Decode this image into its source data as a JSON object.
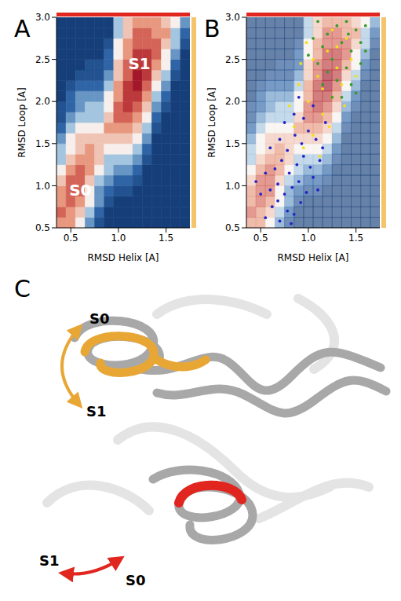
{
  "chart_data": [
    {
      "label": "A",
      "type": "heatmap",
      "x_label": "RMSD Helix [A]",
      "y_label": "RMSD Loop [A]",
      "xlim": [
        0.35,
        1.75
      ],
      "xticks": [
        0.5,
        {
          "value": 1,
          "label": "1.0"
        },
        1.5
      ],
      "ylim": [
        0.5,
        3.0
      ],
      "yticks": [
        0.5,
        {
          "value": 1,
          "label": "1.0"
        },
        1.5,
        {
          "value": 2,
          "label": "2.0"
        },
        2.5,
        {
          "value": 3,
          "label": "3.0"
        }
      ],
      "annotations": [
        {
          "text": "S0",
          "x": 0.6,
          "y": 0.95
        },
        {
          "text": "S1",
          "x": 1.22,
          "y": 2.45
        }
      ],
      "cells": {
        "x_edges": [
          0.35,
          0.45,
          0.55,
          0.65,
          0.75,
          0.85,
          0.95,
          1.05,
          1.15,
          1.25,
          1.35,
          1.45,
          1.55,
          1.65,
          1.75
        ],
        "y_edges": [
          0.5,
          0.625,
          0.75,
          0.875,
          1.0,
          1.125,
          1.25,
          1.375,
          1.5,
          1.625,
          1.75,
          1.875,
          2.0,
          2.125,
          2.25,
          2.375,
          2.5,
          2.625,
          2.75,
          2.875,
          3.0
        ],
        "zlim": [
          0,
          10
        ],
        "z": [
          [
            7,
            7,
            5,
            3,
            1,
            0,
            0,
            0,
            0,
            0,
            0,
            0,
            0,
            0
          ],
          [
            8,
            7,
            6,
            4,
            2,
            0,
            0,
            0,
            0,
            0,
            0,
            0,
            0,
            0
          ],
          [
            7,
            8,
            7,
            5,
            3,
            1,
            0,
            0,
            0,
            0,
            0,
            0,
            0,
            0
          ],
          [
            7,
            8,
            8,
            5,
            3,
            2,
            1,
            1,
            0,
            0,
            0,
            0,
            0,
            0
          ],
          [
            6,
            8,
            8,
            6,
            4,
            3,
            2,
            2,
            1,
            0,
            0,
            0,
            0,
            0
          ],
          [
            5,
            7,
            8,
            7,
            5,
            4,
            3,
            3,
            2,
            0,
            0,
            0,
            0,
            0
          ],
          [
            4,
            6,
            7,
            7,
            6,
            4,
            4,
            4,
            3,
            1,
            0,
            0,
            0,
            0
          ],
          [
            4,
            5,
            6,
            7,
            6,
            5,
            5,
            5,
            4,
            2,
            0,
            0,
            0,
            0
          ],
          [
            3,
            5,
            6,
            6,
            6,
            6,
            6,
            6,
            5,
            3,
            0,
            0,
            0,
            0
          ],
          [
            2,
            4,
            5,
            5,
            5,
            7,
            7,
            7,
            6,
            4,
            1,
            0,
            0,
            0
          ],
          [
            1,
            3,
            4,
            4,
            4,
            6,
            8,
            8,
            7,
            5,
            2,
            0,
            0,
            0
          ],
          [
            1,
            2,
            3,
            4,
            4,
            5,
            8,
            9,
            8,
            6,
            3,
            1,
            0,
            0
          ],
          [
            0,
            2,
            3,
            3,
            3,
            5,
            7,
            9,
            9,
            7,
            4,
            2,
            0,
            0
          ],
          [
            0,
            1,
            2,
            2,
            2,
            4,
            7,
            9,
            10,
            8,
            5,
            3,
            0,
            0
          ],
          [
            0,
            0,
            1,
            1,
            1,
            3,
            6,
            8,
            10,
            9,
            6,
            4,
            1,
            0
          ],
          [
            0,
            0,
            0,
            1,
            1,
            2,
            6,
            8,
            9,
            9,
            7,
            5,
            2,
            0
          ],
          [
            0,
            0,
            0,
            0,
            0,
            2,
            5,
            7,
            9,
            9,
            8,
            5,
            3,
            0
          ],
          [
            0,
            0,
            0,
            0,
            0,
            1,
            5,
            7,
            8,
            8,
            8,
            6,
            4,
            1
          ],
          [
            0,
            0,
            0,
            0,
            0,
            0,
            4,
            6,
            8,
            8,
            7,
            7,
            4,
            2
          ],
          [
            0,
            0,
            0,
            0,
            0,
            0,
            4,
            6,
            7,
            7,
            7,
            6,
            5,
            3
          ]
        ]
      }
    },
    {
      "label": "B",
      "type": "scatter",
      "x_label": "RMSD Helix [A]",
      "y_label": "RMSD Loop [A]",
      "xlim": [
        0.35,
        1.75
      ],
      "xticks": [
        0.5,
        {
          "value": 1,
          "label": "1.0"
        },
        1.5
      ],
      "ylim": [
        0.5,
        3.0
      ],
      "yticks": [
        0.5,
        {
          "value": 1,
          "label": "1.0"
        },
        1.5,
        {
          "value": 2,
          "label": "2.0"
        },
        2.5,
        {
          "value": 3,
          "label": "3.0"
        }
      ],
      "cells": {
        "x_edges": [
          0.35,
          0.45,
          0.55,
          0.65,
          0.75,
          0.85,
          0.95,
          1.05,
          1.15,
          1.25,
          1.35,
          1.45,
          1.55,
          1.65,
          1.75
        ],
        "y_edges": [
          0.5,
          0.625,
          0.75,
          0.875,
          1.0,
          1.125,
          1.25,
          1.375,
          1.5,
          1.625,
          1.75,
          1.875,
          2.0,
          2.125,
          2.25,
          2.375,
          2.5,
          2.625,
          2.75,
          2.875,
          3.0
        ],
        "zlim": [
          0,
          10
        ],
        "z": [
          [
            7,
            7,
            5,
            3,
            1,
            0,
            0,
            0,
            0,
            0,
            0,
            0,
            0,
            0
          ],
          [
            8,
            7,
            6,
            4,
            2,
            0,
            0,
            0,
            0,
            0,
            0,
            0,
            0,
            0
          ],
          [
            7,
            8,
            7,
            5,
            3,
            1,
            0,
            0,
            0,
            0,
            0,
            0,
            0,
            0
          ],
          [
            7,
            8,
            8,
            5,
            3,
            2,
            1,
            1,
            0,
            0,
            0,
            0,
            0,
            0
          ],
          [
            6,
            8,
            8,
            6,
            4,
            3,
            2,
            2,
            1,
            0,
            0,
            0,
            0,
            0
          ],
          [
            5,
            7,
            8,
            7,
            5,
            4,
            3,
            3,
            2,
            0,
            0,
            0,
            0,
            0
          ],
          [
            4,
            6,
            7,
            7,
            6,
            4,
            4,
            4,
            3,
            1,
            0,
            0,
            0,
            0
          ],
          [
            4,
            5,
            6,
            7,
            6,
            5,
            5,
            5,
            4,
            2,
            0,
            0,
            0,
            0
          ],
          [
            3,
            5,
            6,
            6,
            6,
            6,
            6,
            6,
            5,
            3,
            0,
            0,
            0,
            0
          ],
          [
            2,
            4,
            5,
            5,
            5,
            7,
            7,
            7,
            6,
            4,
            1,
            0,
            0,
            0
          ],
          [
            1,
            3,
            4,
            4,
            4,
            6,
            8,
            8,
            7,
            5,
            2,
            0,
            0,
            0
          ],
          [
            1,
            2,
            3,
            4,
            4,
            5,
            8,
            9,
            8,
            6,
            3,
            1,
            0,
            0
          ],
          [
            0,
            2,
            3,
            3,
            3,
            5,
            7,
            9,
            9,
            7,
            4,
            2,
            0,
            0
          ],
          [
            0,
            1,
            2,
            2,
            2,
            4,
            7,
            9,
            10,
            8,
            5,
            3,
            0,
            0
          ],
          [
            0,
            0,
            1,
            1,
            1,
            3,
            6,
            8,
            10,
            9,
            6,
            4,
            1,
            0
          ],
          [
            0,
            0,
            0,
            1,
            1,
            2,
            6,
            8,
            9,
            9,
            7,
            5,
            2,
            0
          ],
          [
            0,
            0,
            0,
            0,
            0,
            2,
            5,
            7,
            9,
            9,
            8,
            5,
            3,
            0
          ],
          [
            0,
            0,
            0,
            0,
            0,
            1,
            5,
            7,
            8,
            8,
            8,
            6,
            4,
            1
          ],
          [
            0,
            0,
            0,
            0,
            0,
            0,
            4,
            6,
            8,
            8,
            7,
            7,
            4,
            2
          ],
          [
            0,
            0,
            0,
            0,
            0,
            0,
            4,
            6,
            7,
            7,
            7,
            6,
            5,
            3
          ]
        ]
      },
      "series": [
        {
          "color": "#2323c8",
          "x": [
            0.55,
            0.62,
            0.7,
            0.78,
            0.85,
            0.92,
            0.5,
            0.6,
            0.68,
            0.75,
            0.83,
            0.9,
            0.98,
            1.05,
            0.55,
            0.65,
            0.72,
            0.8,
            0.88,
            0.95,
            1.02,
            1.12,
            0.6,
            0.7,
            0.78,
            0.86,
            0.93,
            1.0,
            1.08,
            0.75,
            0.85,
            0.95,
            1.05,
            0.68,
            1.15,
            0.45,
            0.82,
            1.1,
            0.9,
            1.18
          ],
          "y": [
            0.62,
            0.75,
            0.58,
            0.7,
            0.66,
            0.8,
            0.9,
            0.95,
            1.02,
            0.9,
            0.98,
            1.05,
            0.92,
            1.1,
            1.15,
            1.2,
            1.3,
            1.15,
            1.25,
            1.35,
            1.22,
            1.3,
            1.45,
            1.55,
            1.42,
            1.6,
            1.5,
            1.65,
            1.55,
            1.75,
            1.85,
            1.8,
            1.95,
            0.82,
            1.45,
            1.05,
            0.55,
            0.95,
            2.05,
            1.75
          ]
        },
        {
          "color": "#f2e01c",
          "x": [
            0.95,
            1.05,
            0.85,
            1.15,
            1.25,
            1.0,
            0.9,
            1.1,
            1.3,
            1.2,
            1.4,
            1.05,
            1.35,
            1.45,
            1.15,
            1.25,
            0.98,
            1.5,
            1.12,
            0.8,
            1.38,
            1.22,
            1.3,
            0.92
          ],
          "y": [
            1.45,
            1.6,
            1.7,
            1.85,
            2.05,
            2.0,
            2.2,
            2.3,
            2.4,
            2.6,
            2.75,
            2.5,
            2.2,
            2.5,
            2.15,
            2.85,
            2.7,
            2.3,
            1.35,
            1.95,
            1.95,
            1.7,
            2.65,
            2.45
          ]
        },
        {
          "color": "#3a9a2a",
          "x": [
            1.1,
            1.2,
            1.3,
            1.4,
            1.5,
            1.05,
            1.15,
            1.35,
            1.45,
            1.55,
            1.25,
            1.4,
            1.55,
            1.1,
            1.2,
            1.3,
            1.45,
            1.35,
            1.5,
            1.6,
            1.25,
            1.15,
            1.0,
            1.6,
            1.42
          ],
          "y": [
            2.95,
            2.8,
            2.9,
            2.95,
            2.85,
            2.75,
            2.65,
            2.7,
            2.6,
            2.7,
            2.5,
            2.4,
            2.45,
            2.45,
            2.35,
            2.25,
            2.2,
            2.05,
            2.1,
            2.6,
            2.05,
            2.2,
            2.55,
            2.9,
            2.8
          ]
        }
      ]
    }
  ],
  "diagram": {
    "label": "C",
    "arrows": [
      {
        "labels": [
          "S0",
          "S1"
        ],
        "color": "#e8a735"
      },
      {
        "labels": [
          "S1",
          "S0"
        ],
        "color": "#e0261e"
      }
    ]
  }
}
